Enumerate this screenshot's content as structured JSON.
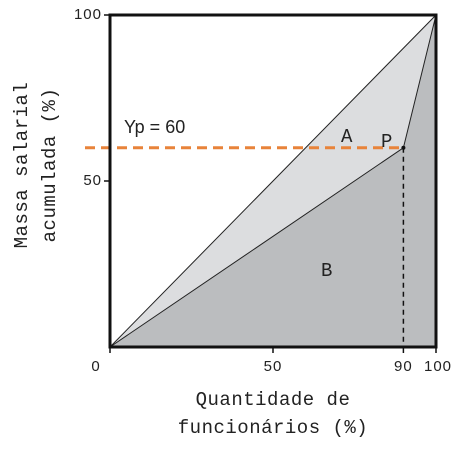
{
  "chart_data": {
    "type": "line",
    "x_label": [
      "Quantidade de",
      "funcionários (%)"
    ],
    "y_label": [
      "Massa salarial",
      "acumulada (%)"
    ],
    "xlim": [
      0,
      100
    ],
    "ylim": [
      0,
      100
    ],
    "xticks": [
      0,
      50,
      90,
      100
    ],
    "yticks": [
      50,
      100
    ],
    "equality": {
      "x": [
        0,
        100
      ],
      "values": [
        0,
        100
      ],
      "color": "#dcdddf"
    },
    "lorenz": {
      "x": [
        0,
        90,
        100
      ],
      "values": [
        0,
        60,
        100
      ],
      "color": "#bbbdbf"
    },
    "reference": {
      "value": 60,
      "label": "Yp = 60",
      "color": "#e8833a"
    },
    "annotations": {
      "A": "A",
      "B": "B",
      "P": "P"
    }
  }
}
